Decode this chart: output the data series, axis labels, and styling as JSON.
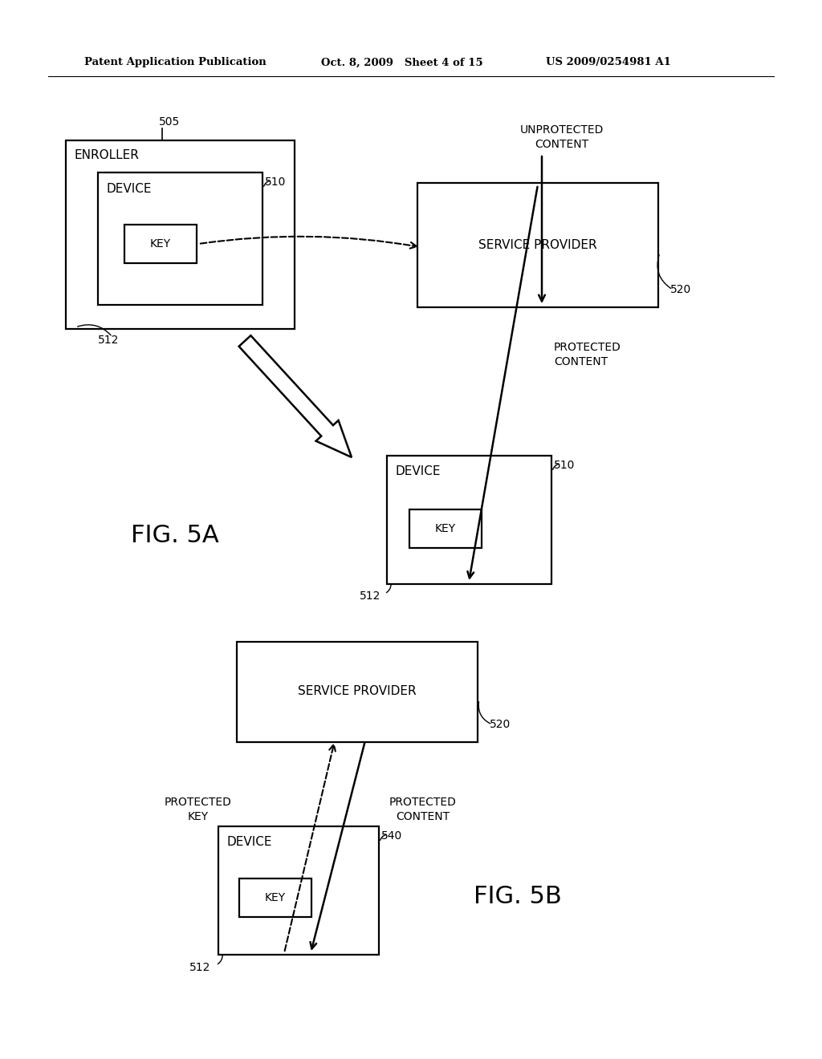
{
  "fig_width": 10.24,
  "fig_height": 13.2,
  "bg_color": "#ffffff",
  "header_left": "Patent Application Publication",
  "header_mid": "Oct. 8, 2009   Sheet 4 of 15",
  "header_right": "US 2009/0254981 A1",
  "fig5a_label": "FIG. 5A",
  "fig5b_label": "FIG. 5B",
  "text_color": "#000000",
  "box_color": "#000000",
  "box_fill": "#ffffff",
  "label_color": "#000000"
}
